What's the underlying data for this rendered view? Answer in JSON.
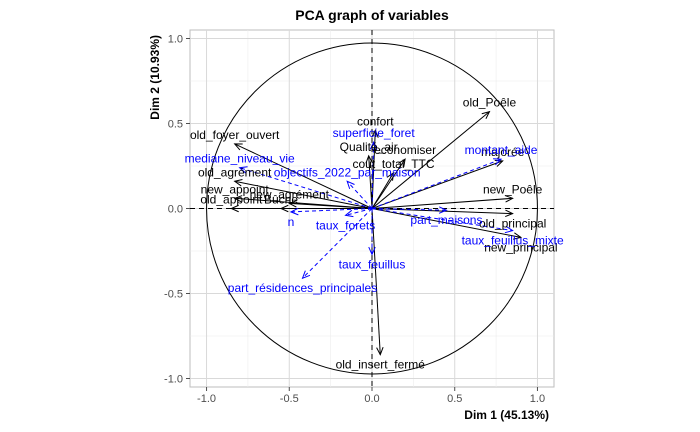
{
  "chart_data": {
    "type": "scatter",
    "title": "PCA graph of variables",
    "xlabel": "Dim 1 (45.13%)",
    "ylabel": "Dim 2 (10.93%)",
    "xlim": [
      -1.1,
      1.1
    ],
    "ylim": [
      -1.05,
      1.05
    ],
    "xticks": [
      "-1.0",
      "-0.5",
      "0.0",
      "0.5",
      "1.0"
    ],
    "yticks": [
      "-1.0",
      "-0.5",
      "0.0",
      "0.5",
      "1.0"
    ],
    "grid": true,
    "unit_circle": true,
    "series": [
      {
        "name": "active",
        "color": "#000000",
        "line": "solid",
        "vectors": [
          {
            "label": "old_Poêle",
            "x": 0.71,
            "y": 0.57
          },
          {
            "label": "confort",
            "x": 0.02,
            "y": 0.46
          },
          {
            "label": "Qualité_air",
            "x": -0.02,
            "y": 0.31
          },
          {
            "label": "economiser",
            "x": 0.2,
            "y": 0.29
          },
          {
            "label": "majorée",
            "x": 0.79,
            "y": 0.28
          },
          {
            "label": "cout_total_TTC",
            "x": 0.13,
            "y": 0.21
          },
          {
            "label": "old_foyer_ouvert",
            "x": -0.83,
            "y": 0.38
          },
          {
            "label": "old_agrément",
            "x": -0.83,
            "y": 0.16
          },
          {
            "label": "new_appoint",
            "x": -0.83,
            "y": 0.06
          },
          {
            "label": "new_agrément",
            "x": -0.5,
            "y": 0.03
          },
          {
            "label": "old_appoint",
            "x": -0.85,
            "y": 0.0
          },
          {
            "label": "Bûche",
            "x": -0.55,
            "y": 0.0
          },
          {
            "label": "new_Poêle",
            "x": 0.85,
            "y": 0.06
          },
          {
            "label": "old_principal",
            "x": 0.85,
            "y": -0.03
          },
          {
            "label": "new_principal",
            "x": 0.9,
            "y": -0.17
          },
          {
            "label": "old_insert_fermé",
            "x": 0.05,
            "y": -0.86
          }
        ]
      },
      {
        "name": "supplementary",
        "color": "#0000ff",
        "line": "dashed",
        "vectors": [
          {
            "label": "superficie_foret",
            "x": 0.01,
            "y": 0.39
          },
          {
            "label": "montant_aide",
            "x": 0.78,
            "y": 0.29
          },
          {
            "label": "mediane_niveau_vie",
            "x": -0.8,
            "y": 0.24
          },
          {
            "label": "objectifs_2022_par_maison",
            "x": -0.15,
            "y": 0.16
          },
          {
            "label": "n",
            "x": -0.49,
            "y": -0.02
          },
          {
            "label": "taux_forets",
            "x": -0.16,
            "y": -0.04
          },
          {
            "label": "part_maisons",
            "x": 0.45,
            "y": -0.01
          },
          {
            "label": "taux_feuillus_mixte",
            "x": 0.85,
            "y": -0.13
          },
          {
            "label": "taux_feuillus",
            "x": 0.0,
            "y": -0.27
          },
          {
            "label": "part_résidences_principales",
            "x": -0.42,
            "y": -0.41
          }
        ]
      }
    ]
  }
}
